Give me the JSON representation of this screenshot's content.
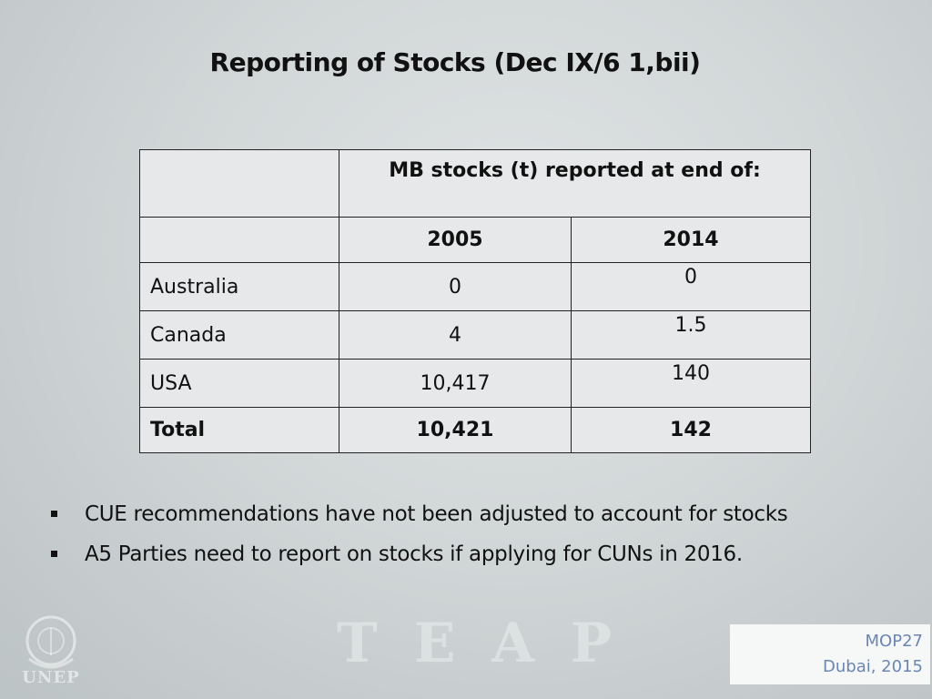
{
  "slide": {
    "title": "Reporting of Stocks (Dec IX/6 1,bii)"
  },
  "table": {
    "header": "MB stocks (t) reported at end of:",
    "years": [
      "2005",
      "2014"
    ],
    "rows": [
      {
        "country": "Australia",
        "v2005": "0",
        "v2014": "0"
      },
      {
        "country": "Canada",
        "v2005": "4",
        "v2014": "1.5"
      },
      {
        "country": "USA",
        "v2005": "10,417",
        "v2014": "140"
      }
    ],
    "total": {
      "label": "Total",
      "v2005": "10,421",
      "v2014": "142"
    }
  },
  "bullets": [
    "CUE recommendations have not been adjusted to account for stocks",
    "A5 Parties need to report on stocks if applying for CUNs in 2016."
  ],
  "watermark": {
    "teap": "TEAP",
    "unep": "UNEP"
  },
  "footer": {
    "event": "MOP27",
    "location": "Dubai, 2015"
  },
  "colors": {
    "footer_text": "#6a86b4"
  }
}
